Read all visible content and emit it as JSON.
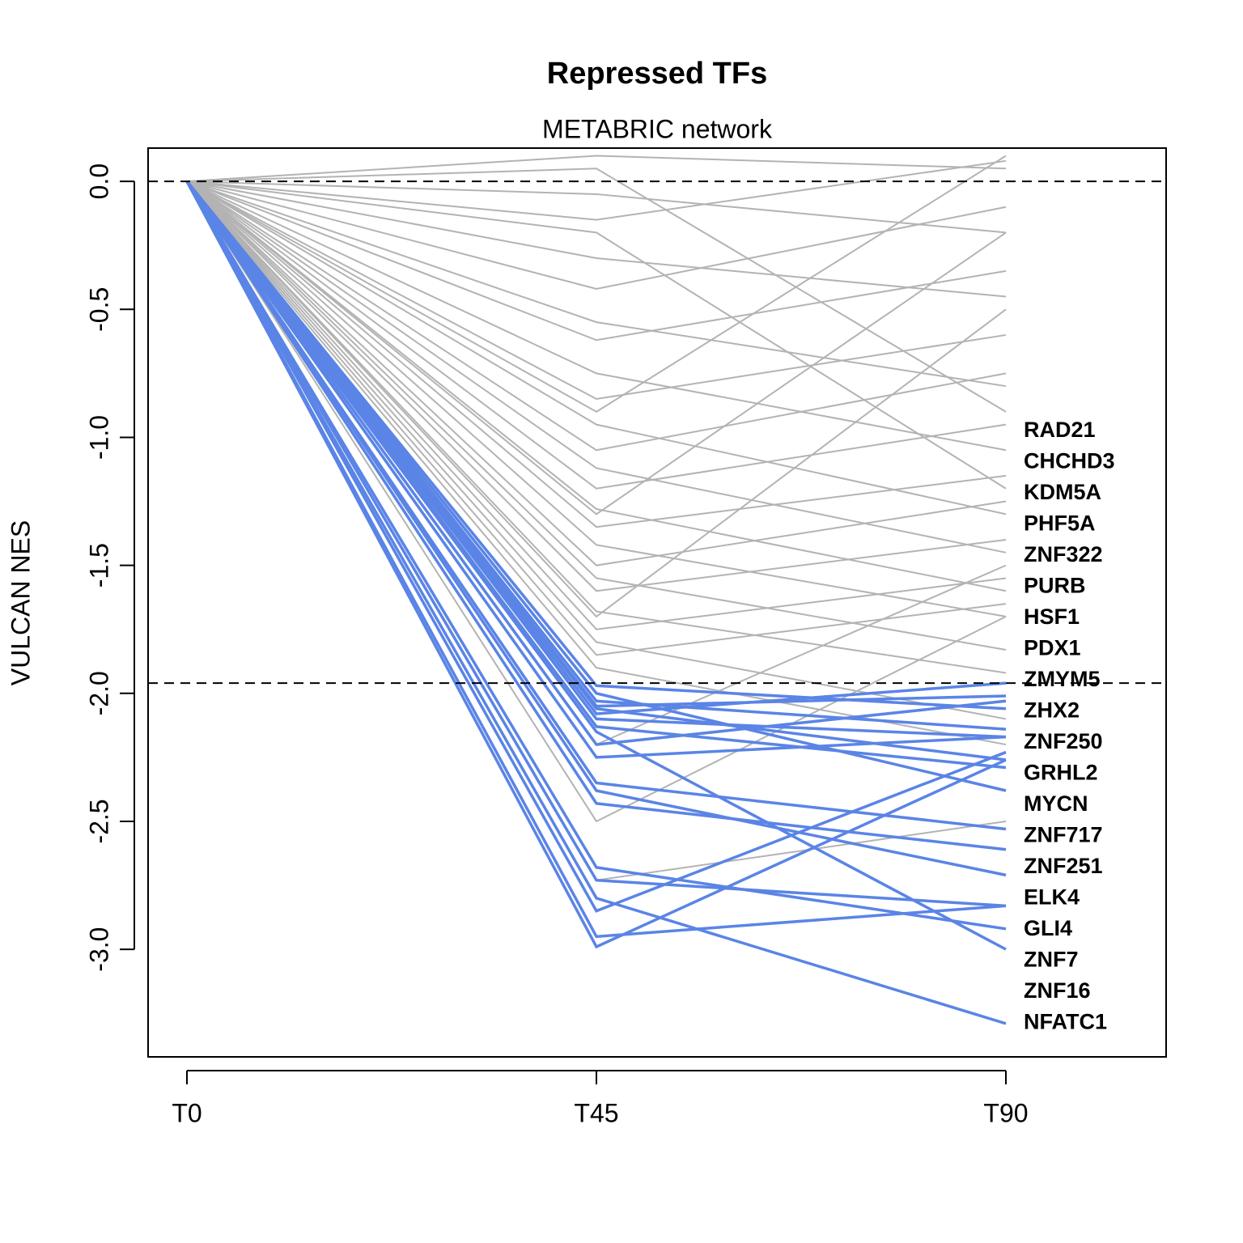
{
  "chart_data": {
    "type": "line",
    "title": "Repressed TFs",
    "subtitle": "METABRIC network",
    "y_label": "VULCAN NES",
    "categories": [
      "T0",
      "T45",
      "T90"
    ],
    "ylim": [
      -3.42,
      0.13
    ],
    "yticks": [
      {
        "value": 0,
        "label": "0.0"
      },
      -0.5,
      {
        "value": -1,
        "label": "-1.0"
      },
      -1.5,
      {
        "value": -2,
        "label": "-2.0"
      },
      -2.5,
      {
        "value": -3,
        "label": "-3.0"
      }
    ],
    "hlines": [
      0,
      -1.96
    ],
    "series": [
      {
        "color": "#b3b3b3",
        "values": [
          0,
          0.1,
          0.05
        ]
      },
      {
        "color": "#b3b3b3",
        "values": [
          0,
          -0.05,
          -0.2
        ]
      },
      {
        "color": "#b3b3b3",
        "values": [
          0,
          -0.15,
          0.08
        ]
      },
      {
        "color": "#b3b3b3",
        "values": [
          0,
          -0.3,
          -0.45
        ]
      },
      {
        "color": "#b3b3b3",
        "values": [
          0,
          -0.42,
          -0.1
        ]
      },
      {
        "color": "#b3b3b3",
        "values": [
          0,
          -0.55,
          -0.8
        ]
      },
      {
        "color": "#b3b3b3",
        "values": [
          0,
          -0.62,
          -0.35
        ]
      },
      {
        "color": "#b3b3b3",
        "values": [
          0,
          -0.75,
          -1.05
        ]
      },
      {
        "color": "#b3b3b3",
        "values": [
          0,
          -0.85,
          -0.6
        ]
      },
      {
        "color": "#b3b3b3",
        "values": [
          0,
          -0.95,
          -1.3
        ]
      },
      {
        "color": "#b3b3b3",
        "values": [
          0,
          -1.05,
          -0.75
        ]
      },
      {
        "color": "#b3b3b3",
        "values": [
          0,
          -1.12,
          -1.45
        ]
      },
      {
        "color": "#b3b3b3",
        "values": [
          0,
          -1.2,
          -0.95
        ]
      },
      {
        "color": "#b3b3b3",
        "values": [
          0,
          -1.28,
          -1.6
        ]
      },
      {
        "color": "#b3b3b3",
        "values": [
          0,
          -1.35,
          -1.15
        ]
      },
      {
        "color": "#b3b3b3",
        "values": [
          0,
          -1.42,
          -1.7
        ]
      },
      {
        "color": "#b3b3b3",
        "values": [
          0,
          -1.5,
          -1.25
        ]
      },
      {
        "color": "#b3b3b3",
        "values": [
          0,
          -1.55,
          -1.83
        ]
      },
      {
        "color": "#b3b3b3",
        "values": [
          0,
          -1.6,
          -1.4
        ]
      },
      {
        "color": "#b3b3b3",
        "values": [
          0,
          -1.68,
          -1.92
        ]
      },
      {
        "color": "#b3b3b3",
        "values": [
          0,
          -1.75,
          -1.55
        ]
      },
      {
        "color": "#b3b3b3",
        "values": [
          0,
          -1.8,
          -2.1
        ]
      },
      {
        "color": "#b3b3b3",
        "values": [
          0,
          -1.85,
          -1.65
        ]
      },
      {
        "color": "#b3b3b3",
        "values": [
          0,
          -1.9,
          -2.2
        ]
      },
      {
        "color": "#b3b3b3",
        "values": [
          0,
          -2.2,
          -1.5
        ]
      },
      {
        "color": "#b3b3b3",
        "values": [
          0,
          -2.5,
          -1.7
        ]
      },
      {
        "color": "#b3b3b3",
        "values": [
          0,
          -2.73,
          -2.5
        ]
      },
      {
        "color": "#b3b3b3",
        "values": [
          0,
          0.05,
          -0.9
        ]
      },
      {
        "color": "#b3b3b3",
        "values": [
          0,
          -0.2,
          -1.2
        ]
      },
      {
        "color": "#b3b3b3",
        "values": [
          0,
          -0.9,
          0.1
        ]
      },
      {
        "color": "#b3b3b3",
        "values": [
          0,
          -1.3,
          -0.2
        ]
      },
      {
        "color": "#b3b3b3",
        "values": [
          0,
          -1.7,
          -0.5
        ]
      },
      {
        "name": "RAD21",
        "color": "#5a84e6",
        "values": [
          0,
          -2.05,
          -2.01
        ]
      },
      {
        "name": "CHCHD3",
        "color": "#5a84e6",
        "values": [
          0,
          -1.97,
          -2.06
        ]
      },
      {
        "name": "KDM5A",
        "color": "#5a84e6",
        "values": [
          0,
          -2.08,
          -1.96
        ]
      },
      {
        "name": "PHF5A",
        "color": "#5a84e6",
        "values": [
          0,
          -2.1,
          -2.17
        ]
      },
      {
        "name": "ZNF322",
        "color": "#5a84e6",
        "values": [
          0,
          -2.03,
          -2.14
        ]
      },
      {
        "name": "PURB",
        "color": "#5a84e6",
        "values": [
          0,
          -2.13,
          -2.29
        ]
      },
      {
        "name": "HSF1",
        "color": "#5a84e6",
        "values": [
          0,
          -2.06,
          -2.26
        ]
      },
      {
        "name": "PDX1",
        "color": "#5a84e6",
        "values": [
          0,
          -2.2,
          -2.03
        ]
      },
      {
        "name": "ZMYM5",
        "color": "#5a84e6",
        "values": [
          0,
          -2.25,
          -2.17
        ]
      },
      {
        "name": "ZHX2",
        "color": "#5a84e6",
        "values": [
          0,
          -2.0,
          -2.38
        ]
      },
      {
        "name": "ZNF250",
        "color": "#5a84e6",
        "values": [
          0,
          -2.35,
          -2.53
        ]
      },
      {
        "name": "GRHL2",
        "color": "#5a84e6",
        "values": [
          0,
          -2.38,
          -2.71
        ]
      },
      {
        "name": "MYCN",
        "color": "#5a84e6",
        "values": [
          0,
          -2.43,
          -2.61
        ]
      },
      {
        "name": "ZNF717",
        "color": "#5a84e6",
        "values": [
          0,
          -2.68,
          -2.92
        ]
      },
      {
        "name": "ZNF251",
        "color": "#5a84e6",
        "values": [
          0,
          -2.73,
          -2.83
        ]
      },
      {
        "name": "ELK4",
        "color": "#5a84e6",
        "values": [
          0,
          -2.8,
          -3.29
        ]
      },
      {
        "name": "GLI4",
        "color": "#5a84e6",
        "values": [
          0,
          -2.85,
          -2.23
        ]
      },
      {
        "name": "ZNF7",
        "color": "#5a84e6",
        "values": [
          0,
          -2.95,
          -2.83
        ]
      },
      {
        "name": "ZNF16",
        "color": "#5a84e6",
        "values": [
          0,
          -2.99,
          -2.26
        ]
      },
      {
        "name": "NFATC1",
        "color": "#5a84e6",
        "values": [
          0,
          -2.15,
          -3.0
        ]
      }
    ]
  }
}
